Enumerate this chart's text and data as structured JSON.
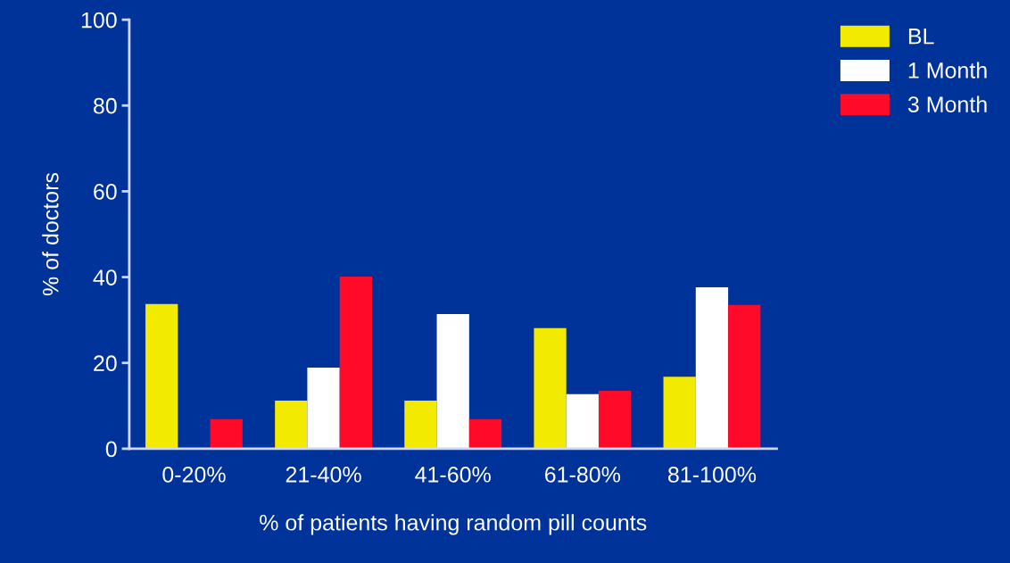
{
  "chart_data": {
    "type": "bar",
    "xlabel": "% of patients having random pill counts",
    "ylabel": "% of doctors",
    "categories": [
      "0-20%",
      "21-40%",
      "41-60%",
      "61-80%",
      "81-100%"
    ],
    "series": [
      {
        "name": "BL",
        "color": "#f2ea00",
        "values": [
          33.7,
          11.2,
          11.2,
          28.1,
          16.8
        ]
      },
      {
        "name": "1 Month",
        "color": "#ffffff",
        "values": [
          0,
          18.9,
          31.4,
          12.7,
          37.6
        ]
      },
      {
        "name": "3 Month",
        "color": "#ff0a28",
        "values": [
          6.9,
          40.1,
          6.9,
          13.5,
          33.5
        ]
      }
    ],
    "ylim": [
      0,
      100
    ],
    "yticks": [
      0,
      20,
      40,
      60,
      80,
      100
    ],
    "grid": false,
    "legend": "top right"
  }
}
